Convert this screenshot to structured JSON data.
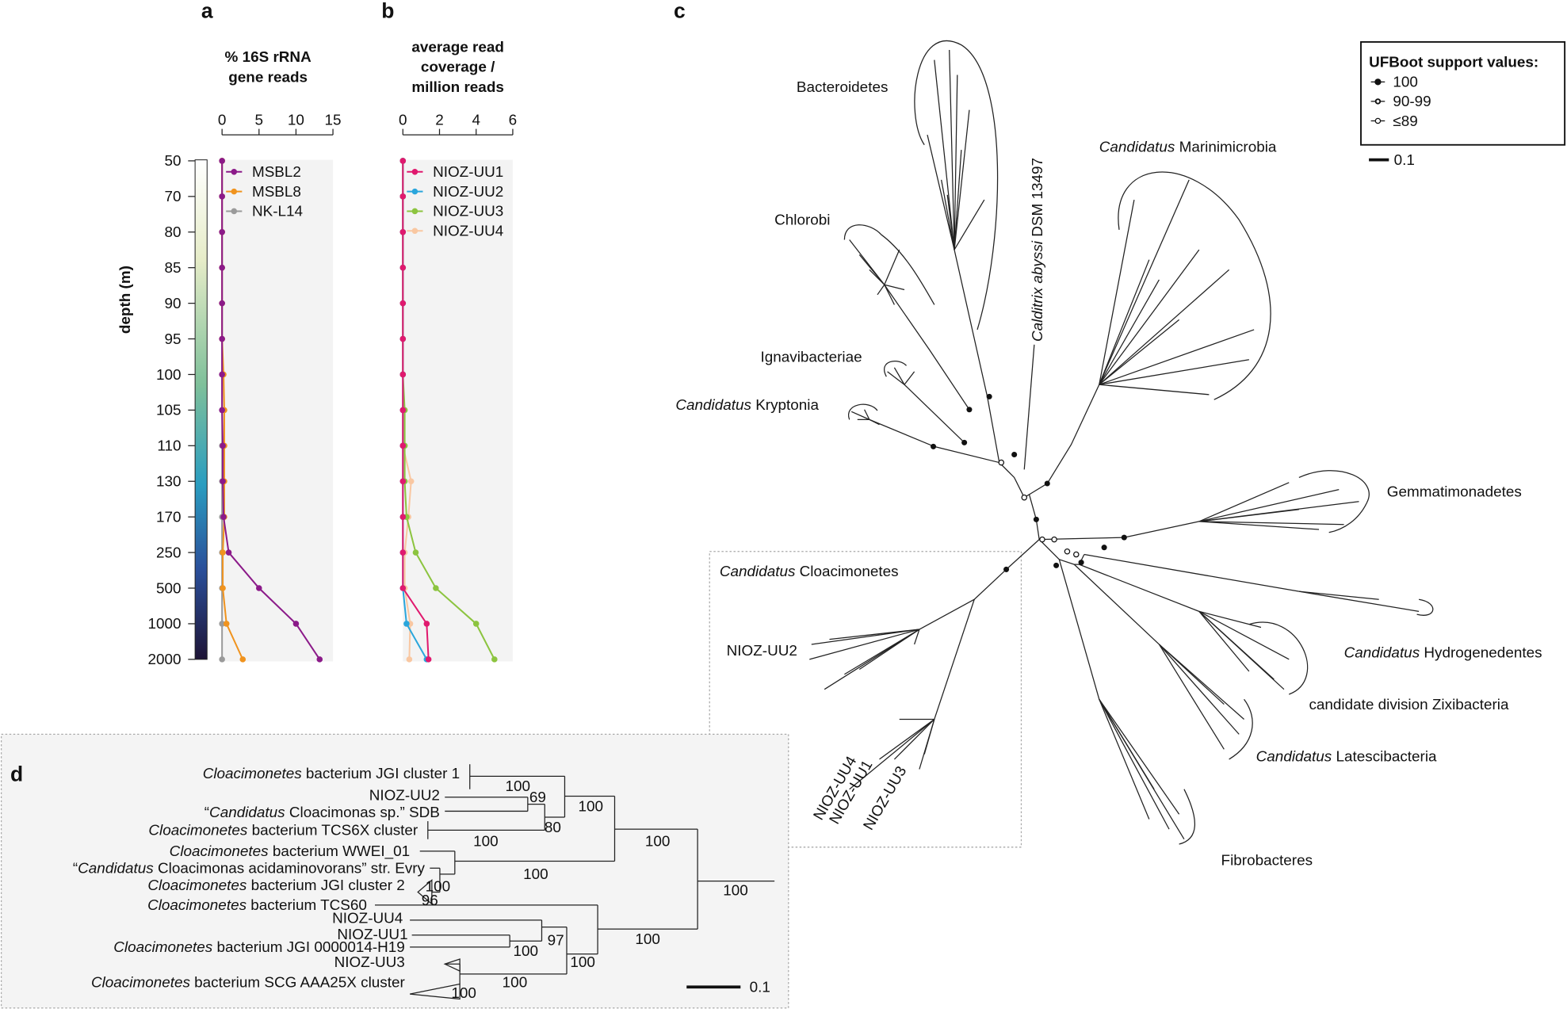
{
  "chart_data": [
    {
      "type": "line",
      "panel_label": "a",
      "title": [
        "% 16S rRNA",
        "gene reads"
      ],
      "y_label": "depth (m)",
      "categories": [
        "50",
        "70",
        "80",
        "85",
        "90",
        "95",
        "100",
        "105",
        "110",
        "130",
        "170",
        "250",
        "500",
        "1000",
        "2000"
      ],
      "xlim": [
        0,
        15
      ],
      "xticks": [
        0,
        5,
        10,
        15
      ],
      "series": [
        {
          "name": "MSBL2",
          "color": "#8b1a89",
          "values": [
            0,
            0,
            0,
            0,
            0,
            0,
            0,
            0,
            0.1,
            0.1,
            0.2,
            0.9,
            5,
            10,
            13.2
          ]
        },
        {
          "name": "MSBL8",
          "color": "#f0931e",
          "values": [
            0,
            0,
            0,
            0,
            0,
            0,
            0.2,
            0.3,
            0.3,
            0.3,
            0.3,
            0.1,
            0.1,
            0.6,
            2.8
          ]
        },
        {
          "name": "NK-L14",
          "color": "#9a9a9a",
          "values": [
            0,
            0,
            0,
            0,
            0,
            0,
            0,
            0,
            0,
            0,
            0,
            0,
            0,
            0,
            0
          ]
        }
      ]
    },
    {
      "type": "line",
      "panel_label": "b",
      "title": [
        "average read",
        "coverage /",
        "million reads"
      ],
      "categories": [
        "50",
        "70",
        "80",
        "85",
        "90",
        "95",
        "100",
        "105",
        "110",
        "130",
        "170",
        "250",
        "500",
        "1000",
        "2000"
      ],
      "xlim": [
        0,
        6
      ],
      "xticks": [
        0,
        2,
        4,
        6
      ],
      "series": [
        {
          "name": "NIOZ-UU1",
          "color": "#e0196e",
          "values": [
            0,
            0,
            0,
            0,
            0,
            0,
            0,
            0,
            0,
            0,
            0,
            0,
            0,
            1.3,
            1.4
          ]
        },
        {
          "name": "NIOZ-UU2",
          "color": "#2aa6dc",
          "values": [
            0,
            0,
            0,
            0,
            0,
            0,
            0,
            0,
            0,
            0,
            0,
            0,
            0,
            0.2,
            1.3
          ]
        },
        {
          "name": "NIOZ-UU3",
          "color": "#8cc43f",
          "values": [
            0,
            0,
            0,
            0,
            0,
            0,
            0,
            0.1,
            0.1,
            0.1,
            0.2,
            0.7,
            1.8,
            4,
            5
          ]
        },
        {
          "name": "NIOZ-UU4",
          "color": "#f9c7a1",
          "values": [
            0,
            0,
            0,
            0,
            0,
            0,
            0,
            0,
            0,
            0.45,
            0.3,
            0.1,
            0.1,
            0.4,
            0.35
          ]
        }
      ]
    }
  ],
  "tree_c": {
    "panel_label": "c",
    "clades": [
      [
        {
          "t": "Bacteroidetes"
        }
      ],
      [
        {
          "t": "Chlorobi"
        }
      ],
      [
        {
          "t": "Ignavibacteriae"
        }
      ],
      [
        {
          "t": "Candidatus",
          "i": true
        },
        {
          "t": " Kryptonia"
        }
      ],
      [
        {
          "t": "Calditrix abyssi",
          "i": true
        },
        {
          "t": " DSM 13497"
        }
      ],
      [
        {
          "t": "Candidatus",
          "i": true
        },
        {
          "t": " Marinimicrobia"
        }
      ],
      [
        {
          "t": "Gemmatimonadetes"
        }
      ],
      [
        {
          "t": "Candidatus",
          "i": true
        },
        {
          "t": " Hydrogenedentes"
        }
      ],
      [
        {
          "t": "candidate division Zixibacteria"
        }
      ],
      [
        {
          "t": "Candidatus",
          "i": true
        },
        {
          "t": " Latescibacteria"
        }
      ],
      [
        {
          "t": "Fibrobacteres"
        }
      ],
      [
        {
          "t": "Candidatus",
          "i": true
        },
        {
          "t": " Cloacimonetes"
        }
      ]
    ],
    "genomes": [
      {
        "name": "NIOZ-UU2",
        "color": "#2aa6dc"
      },
      {
        "name": "NIOZ-UU4",
        "color": "#f9b98f"
      },
      {
        "name": "NIOZ-UU1",
        "color": "#e0196e"
      },
      {
        "name": "NIOZ-UU3",
        "color": "#8cc43f"
      }
    ],
    "legend": {
      "title": "UFBoot support values:",
      "items": [
        "100",
        "90-99",
        "≤89"
      ]
    },
    "scale": "0.1"
  },
  "tree_d": {
    "panel_label": "d",
    "taxa": [
      {
        "segs": [
          {
            "t": "Cloacimonetes",
            "i": true
          },
          {
            "t": " bacterium JGI cluster 1"
          }
        ]
      },
      {
        "segs": [
          {
            "t": "NIOZ-UU2"
          }
        ],
        "color": "#2aa6dc"
      },
      {
        "segs": [
          {
            "t": "“"
          },
          {
            "t": "Candidatus",
            "i": true
          },
          {
            "t": " Cloacimonas sp.” SDB"
          }
        ]
      },
      {
        "segs": [
          {
            "t": "Cloacimonetes",
            "i": true
          },
          {
            "t": " bacterium TCS6X cluster"
          }
        ]
      },
      {
        "segs": [
          {
            "t": "Cloacimonetes",
            "i": true
          },
          {
            "t": " bacterium WWEI_01"
          }
        ]
      },
      {
        "segs": [
          {
            "t": "“"
          },
          {
            "t": "Candidatus",
            "i": true
          },
          {
            "t": " Cloacimonas acidaminovorans” str. Evry"
          }
        ]
      },
      {
        "segs": [
          {
            "t": "Cloacimonetes",
            "i": true
          },
          {
            "t": " bacterium JGI cluster 2"
          }
        ]
      },
      {
        "segs": [
          {
            "t": "Cloacimonetes",
            "i": true
          },
          {
            "t": " bacterium TCS60"
          }
        ]
      },
      {
        "segs": [
          {
            "t": "NIOZ-UU4"
          }
        ],
        "color": "#f9b98f"
      },
      {
        "segs": [
          {
            "t": "NIOZ-UU1"
          }
        ],
        "color": "#e0196e"
      },
      {
        "segs": [
          {
            "t": "Cloacimonetes",
            "i": true
          },
          {
            "t": " bacterium JGI 0000014-H19"
          }
        ]
      },
      {
        "segs": [
          {
            "t": "NIOZ-UU3"
          }
        ],
        "color": "#8cc43f"
      },
      {
        "segs": [
          {
            "t": "Cloacimonetes",
            "i": true
          },
          {
            "t": " bacterium SCG AAA25X cluster"
          }
        ]
      }
    ],
    "support": [
      100,
      69,
      100,
      80,
      100,
      100,
      100,
      100,
      96,
      100,
      100,
      97,
      100,
      100,
      100,
      100
    ],
    "scale": "0.1"
  }
}
